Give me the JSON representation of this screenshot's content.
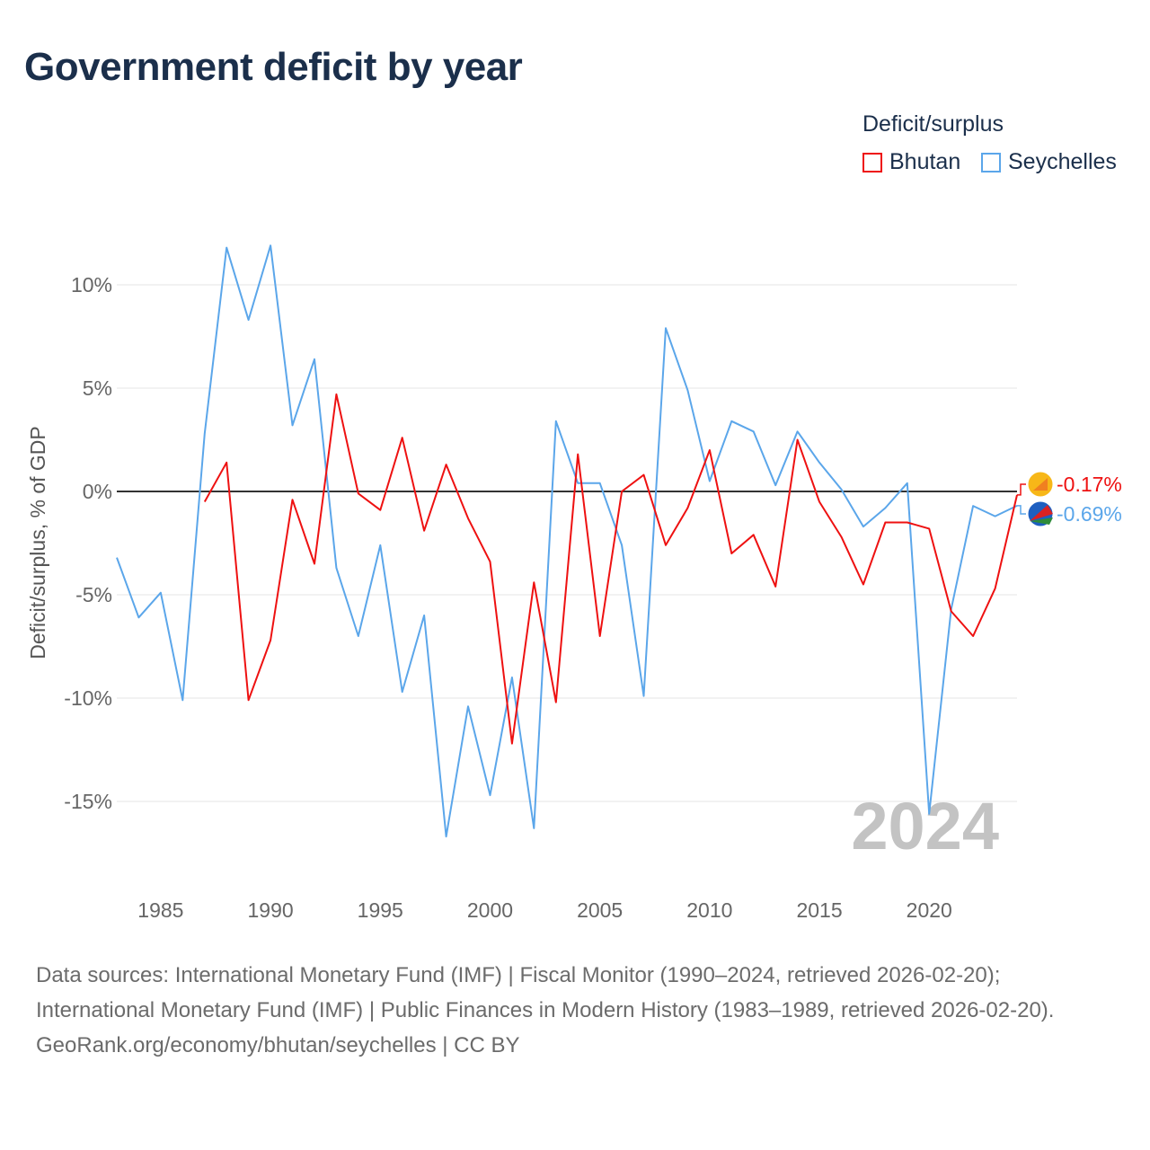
{
  "title": "Government deficit by year",
  "footer": {
    "sources": "Data sources: International Monetary Fund (IMF) | Fiscal Monitor (1990–2024, retrieved 2026-02-20); International Monetary Fund (IMF) | Public Finances in Modern History (1983–1989, retrieved 2026-02-20).",
    "credit": "GeoRank.org/economy/bhutan/seychelles | CC BY"
  },
  "chart_data": {
    "type": "line",
    "title": "Government deficit by year",
    "xlabel": "",
    "ylabel": "Deficit/surplus, % of GDP",
    "legend_title": "Deficit/surplus",
    "legend_position": "top-right",
    "watermark_year": "2024",
    "xlim": [
      1983,
      2024
    ],
    "ylim": [
      -18,
      13
    ],
    "x_ticks": [
      1985,
      1990,
      1995,
      2000,
      2005,
      2010,
      2015,
      2020
    ],
    "x_tick_labels": [
      "1985",
      "1990",
      "1995",
      "2000",
      "2005",
      "2010",
      "2015",
      "2020"
    ],
    "y_ticks": [
      -15,
      -10,
      -5,
      0,
      5,
      10
    ],
    "y_tick_labels": [
      "-15%",
      "-10%",
      "-5%",
      "0%",
      "5%",
      "10%"
    ],
    "grid": true,
    "series": [
      {
        "name": "Bhutan",
        "color": "#ee1111",
        "end_label": "-0.17%",
        "x": [
          1987,
          1988,
          1989,
          1990,
          1991,
          1992,
          1993,
          1994,
          1995,
          1996,
          1997,
          1998,
          1999,
          2000,
          2001,
          2002,
          2003,
          2004,
          2005,
          2006,
          2007,
          2008,
          2009,
          2010,
          2011,
          2012,
          2013,
          2014,
          2015,
          2016,
          2017,
          2018,
          2019,
          2020,
          2021,
          2022,
          2023,
          2024
        ],
        "values": [
          -0.5,
          1.4,
          -10.1,
          -7.2,
          -0.4,
          -3.5,
          4.7,
          -0.1,
          -0.9,
          2.6,
          -1.9,
          1.3,
          -1.3,
          -3.4,
          -12.2,
          -4.4,
          -10.2,
          1.8,
          -7.0,
          0.0,
          0.8,
          -2.6,
          -0.8,
          2.0,
          -3.0,
          -2.1,
          -4.6,
          2.5,
          -0.5,
          -2.2,
          -4.5,
          -1.5,
          -1.5,
          -1.8,
          -5.8,
          -7.0,
          -4.7,
          -0.17
        ]
      },
      {
        "name": "Seychelles",
        "color": "#5ba6ea",
        "end_label": "-0.69%",
        "x": [
          1983,
          1984,
          1985,
          1986,
          1987,
          1988,
          1989,
          1990,
          1991,
          1992,
          1993,
          1994,
          1995,
          1996,
          1997,
          1998,
          1999,
          2000,
          2001,
          2002,
          2003,
          2004,
          2005,
          2006,
          2007,
          2008,
          2009,
          2010,
          2011,
          2012,
          2013,
          2014,
          2015,
          2016,
          2017,
          2018,
          2019,
          2020,
          2021,
          2022,
          2023,
          2024
        ],
        "values": [
          -3.2,
          -6.1,
          -4.9,
          -10.1,
          2.8,
          11.8,
          8.3,
          11.9,
          3.2,
          6.4,
          -3.7,
          -7.0,
          -2.6,
          -9.7,
          -6.0,
          -16.7,
          -10.4,
          -14.7,
          -9.0,
          -16.3,
          3.4,
          0.4,
          0.4,
          -2.6,
          -9.9,
          7.9,
          4.9,
          0.5,
          3.4,
          2.9,
          0.3,
          2.9,
          1.4,
          0.1,
          -1.7,
          -0.8,
          0.4,
          -15.6,
          -5.7,
          -0.7,
          -1.2,
          -0.69
        ]
      }
    ]
  }
}
